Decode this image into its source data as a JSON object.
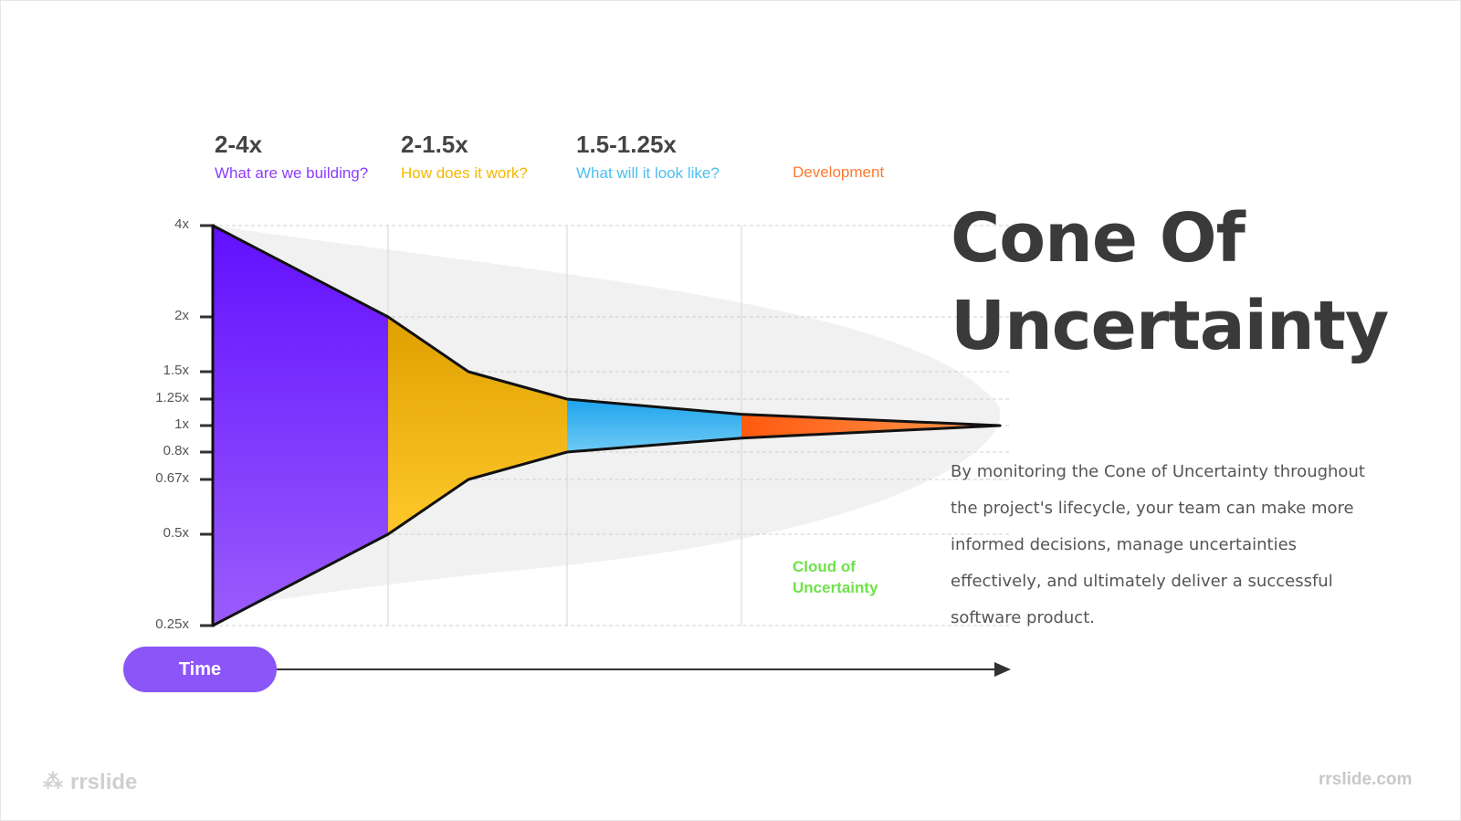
{
  "phases": [
    {
      "range": "2-4x",
      "question": "What are we building?",
      "color": "#8b3dff"
    },
    {
      "range": "2-1.5x",
      "question": "How does it work?",
      "color": "#f5b800"
    },
    {
      "range": "1.5-1.25x",
      "question": "What will it look like?",
      "color": "#4bbff0"
    },
    {
      "range": "",
      "question": "Development",
      "color": "#ff7a30"
    }
  ],
  "y_axis": {
    "scale": "log",
    "ticks": [
      "4x",
      "2x",
      "1.5x",
      "1.25x",
      "1x",
      "0.8x",
      "0.67x",
      "0.5x",
      "0.25x"
    ]
  },
  "cone": {
    "upper": [
      4,
      2,
      1.5,
      1.25,
      1.1,
      1
    ],
    "lower": [
      0.25,
      0.5,
      0.67,
      0.8,
      0.9,
      1
    ]
  },
  "x_axis_label": "Time",
  "cloud_label": [
    "Cloud of",
    "Uncertainty"
  ],
  "title": [
    "Cone Of",
    "Uncertainty"
  ],
  "description": "By monitoring the Cone of Uncertainty throughout the project's lifecycle, your team can make more informed decisions, manage uncertainties effectively, and ultimately deliver a successful software product.",
  "brand": "rrslide",
  "website": "rrslide.com",
  "colors": {
    "purple": "#6a11ff",
    "yellow": "#e5a800",
    "blue": "#2aa8ee",
    "orange": "#ff6a1a",
    "cloud": "#f1f1f1",
    "green": "#6fe24a"
  }
}
